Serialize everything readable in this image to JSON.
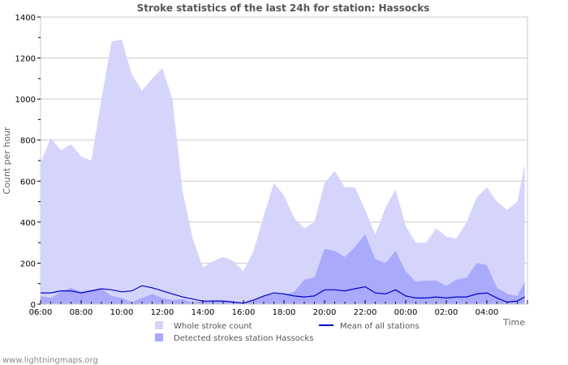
{
  "chart_data": {
    "type": "area",
    "title": "Stroke statistics of the last 24h for station: Hassocks",
    "xlabel": "Time",
    "ylabel": "Count per hour",
    "ylim": [
      0,
      1400
    ],
    "yticks": [
      0,
      200,
      400,
      600,
      800,
      1000,
      1200,
      1400
    ],
    "xticks": [
      "06:00",
      "08:00",
      "10:00",
      "12:00",
      "14:00",
      "16:00",
      "18:00",
      "20:00",
      "22:00",
      "00:00",
      "02:00",
      "04:00"
    ],
    "grid": true,
    "legend_position": "bottom",
    "x": [
      "06:00",
      "06:30",
      "07:00",
      "07:30",
      "08:00",
      "08:30",
      "09:00",
      "09:30",
      "10:00",
      "10:30",
      "11:00",
      "11:30",
      "12:00",
      "12:30",
      "13:00",
      "13:30",
      "14:00",
      "14:30",
      "15:00",
      "15:30",
      "16:00",
      "16:30",
      "17:00",
      "17:30",
      "18:00",
      "18:30",
      "19:00",
      "19:30",
      "20:00",
      "20:30",
      "21:00",
      "21:30",
      "22:00",
      "22:30",
      "23:00",
      "23:30",
      "00:00",
      "00:30",
      "01:00",
      "01:30",
      "02:00",
      "02:30",
      "03:00",
      "03:30",
      "04:00",
      "04:30",
      "05:00",
      "05:30",
      "05:52"
    ],
    "series": [
      {
        "name": "Whole stroke count",
        "kind": "area",
        "color": "#d5d5fc",
        "values": [
          690,
          810,
          750,
          780,
          720,
          700,
          1000,
          1280,
          1290,
          1120,
          1040,
          1100,
          1150,
          1000,
          550,
          320,
          180,
          210,
          230,
          210,
          160,
          260,
          430,
          590,
          530,
          420,
          370,
          400,
          590,
          650,
          570,
          570,
          460,
          340,
          470,
          560,
          380,
          300,
          300,
          370,
          330,
          320,
          400,
          520,
          570,
          500,
          460,
          500,
          680
        ]
      },
      {
        "name": "Detected strokes station Hassocks",
        "kind": "area",
        "color": "#aaaafc",
        "values": [
          40,
          30,
          60,
          80,
          60,
          70,
          75,
          40,
          30,
          10,
          30,
          50,
          30,
          20,
          25,
          10,
          15,
          20,
          20,
          15,
          5,
          20,
          40,
          50,
          45,
          60,
          120,
          130,
          270,
          260,
          230,
          280,
          340,
          220,
          200,
          260,
          160,
          110,
          115,
          115,
          90,
          120,
          130,
          200,
          190,
          80,
          50,
          40,
          110
        ]
      },
      {
        "name": "Mean of all stations",
        "kind": "line",
        "color": "#0000cc",
        "values": [
          55,
          55,
          65,
          65,
          55,
          65,
          75,
          70,
          60,
          65,
          90,
          80,
          65,
          50,
          35,
          25,
          15,
          15,
          15,
          10,
          5,
          20,
          40,
          55,
          50,
          40,
          35,
          40,
          70,
          70,
          65,
          75,
          85,
          55,
          50,
          70,
          40,
          30,
          30,
          35,
          30,
          35,
          35,
          50,
          55,
          30,
          10,
          15,
          35
        ]
      }
    ]
  },
  "legend": {
    "whole": "Whole stroke count",
    "detected": "Detected strokes station Hassocks",
    "mean": "Mean of all stations"
  },
  "footer": "www.lightningmaps.org"
}
